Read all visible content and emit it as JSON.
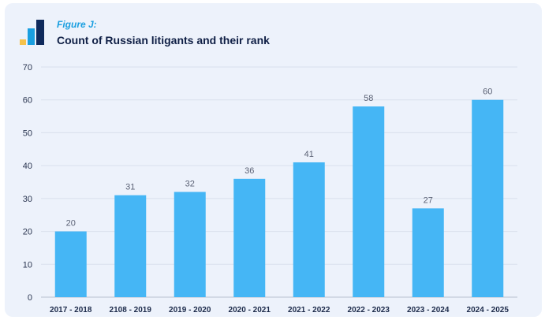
{
  "header": {
    "figure_label": "Figure J:",
    "title": "Count of Russian litigants and their rank"
  },
  "colors": {
    "bar": "#45b6f5",
    "logo_dark": "#0f2a5c",
    "logo_mid": "#1a9fe0",
    "logo_light": "#f5c24c"
  },
  "chart_data": {
    "type": "bar",
    "title": "Count of Russian litigants and their rank",
    "categories": [
      "2017 - 2018",
      "2108 - 2019",
      "2019 - 2020",
      "2020 - 2021",
      "2021 - 2022",
      "2022 - 2023",
      "2023 - 2024",
      "2024 - 2025"
    ],
    "values": [
      20,
      31,
      32,
      36,
      41,
      58,
      27,
      60
    ],
    "ylim": [
      0,
      70
    ],
    "yticks": [
      0,
      10,
      20,
      30,
      40,
      50,
      60,
      70
    ],
    "grid": true,
    "data_labels": true
  }
}
